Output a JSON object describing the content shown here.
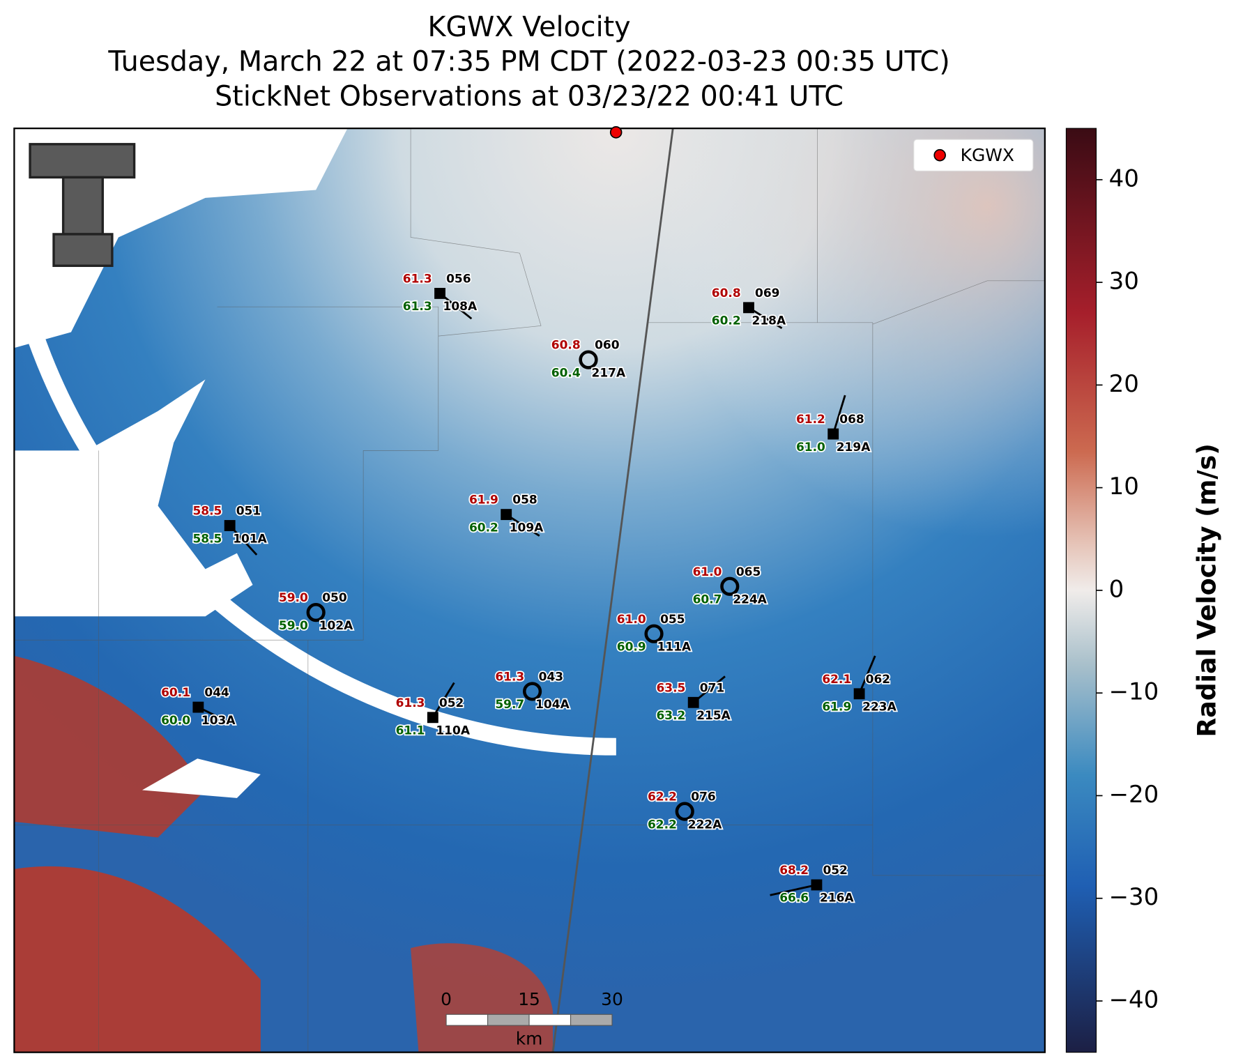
{
  "title": [
    "KGWX Velocity",
    "Tuesday, March 22 at 07:35 PM CDT (2022-03-23 00:35 UTC)",
    "StickNet Observations at 03/23/22 00:41 UTC"
  ],
  "legend": "KGWX",
  "colorbar": {
    "label": "Radial Velocity (m/s)",
    "lim": [
      -45,
      45
    ],
    "ticks": [
      {
        "value": -40,
        "label": "−40"
      },
      {
        "value": -30,
        "label": "−30"
      },
      {
        "value": -20,
        "label": "−20"
      },
      {
        "value": -10,
        "label": "−10"
      },
      0,
      10,
      20,
      30,
      40
    ]
  },
  "scale_bar": {
    "ticks": [
      0,
      15,
      30
    ],
    "unit": "km"
  },
  "stations": [
    {
      "id": "108A",
      "temperature": "61.3",
      "dewpoint": "61.3",
      "pressure": "056"
    },
    {
      "id": "218A",
      "temperature": "60.8",
      "dewpoint": "60.2",
      "pressure": "069"
    },
    {
      "id": "217A",
      "temperature": "60.8",
      "dewpoint": "60.4",
      "pressure": "060"
    },
    {
      "id": "219A",
      "temperature": "61.2",
      "dewpoint": "61.0",
      "pressure": "068"
    },
    {
      "id": "101A",
      "temperature": "58.5",
      "dewpoint": "58.5",
      "pressure": "051"
    },
    {
      "id": "109A",
      "temperature": "61.9",
      "dewpoint": "60.2",
      "pressure": "058"
    },
    {
      "id": "224A",
      "temperature": "61.0",
      "dewpoint": "60.7",
      "pressure": "065"
    },
    {
      "id": "102A",
      "temperature": "59.0",
      "dewpoint": "59.0",
      "pressure": "050"
    },
    {
      "id": "111A",
      "temperature": "61.0",
      "dewpoint": "60.9",
      "pressure": "055"
    },
    {
      "id": "104A",
      "temperature": "61.3",
      "dewpoint": "59.7",
      "pressure": "043"
    },
    {
      "id": "215A",
      "temperature": "63.5",
      "dewpoint": "63.2",
      "pressure": "071"
    },
    {
      "id": "223A",
      "temperature": "62.1",
      "dewpoint": "61.9",
      "pressure": "062"
    },
    {
      "id": "103A",
      "temperature": "60.1",
      "dewpoint": "60.0",
      "pressure": "044"
    },
    {
      "id": "110A",
      "temperature": "61.3",
      "dewpoint": "61.1",
      "pressure": "052"
    },
    {
      "id": "222A",
      "temperature": "62.2",
      "dewpoint": "62.2",
      "pressure": "076"
    },
    {
      "id": "216A",
      "temperature": "68.2",
      "dewpoint": "66.6",
      "pressure": "052"
    }
  ]
}
